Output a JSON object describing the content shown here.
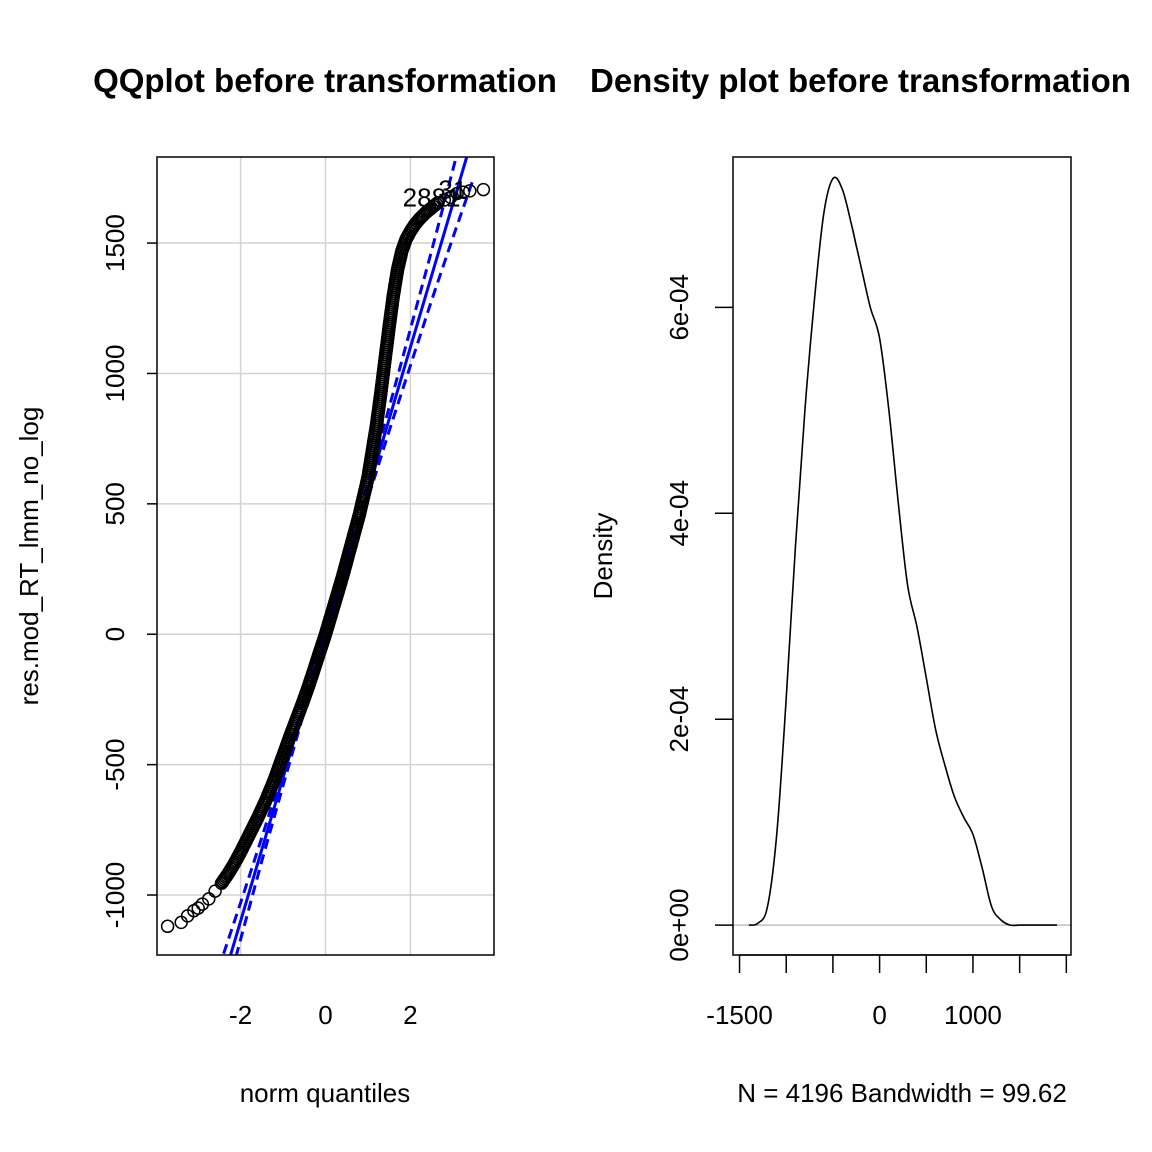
{
  "chart_data": [
    {
      "type": "scatter",
      "title": "QQplot before transformation",
      "xlabel": "norm quantiles",
      "ylabel": "res.mod_RT_lmm_no_log",
      "xlim": [
        -3.97,
        3.97
      ],
      "ylim": [
        -1230,
        1830
      ],
      "x_ticks": [
        -2,
        0,
        2
      ],
      "x_tick_labels": [
        "-2",
        "0",
        "2"
      ],
      "y_ticks": [
        -1000,
        -500,
        0,
        500,
        1000,
        1500
      ],
      "y_tick_labels": [
        "-1000",
        "-500",
        "0",
        "500",
        "1000",
        "1500"
      ],
      "grid": true,
      "points_color": "#000000",
      "reference_line_color": "#0000ff",
      "reference_line": {
        "intercept": 0,
        "slope": 550
      },
      "confidence_band": {
        "x": [
          -2.4,
          -2,
          -1.5,
          -1,
          -0.5,
          0,
          0.5,
          1,
          1.5,
          2,
          2.5,
          3,
          3.5
        ],
        "halfwidth": [
          95,
          70,
          45,
          30,
          20,
          15,
          20,
          30,
          45,
          70,
          95,
          130,
          170
        ]
      },
      "points": {
        "x": [
          -3.72,
          -3.4,
          -3.25,
          -3.1,
          -3.0,
          -2.9,
          -2.75,
          -2.6,
          -2.45,
          -2.3,
          -2.15,
          -2.0,
          -1.8,
          -1.6,
          -1.4,
          -1.2,
          -1.0,
          -0.8,
          -0.6,
          -0.4,
          -0.2,
          0.0,
          0.2,
          0.4,
          0.6,
          0.8,
          1.0,
          1.1,
          1.2,
          1.3,
          1.4,
          1.5,
          1.6,
          1.7,
          1.8,
          1.9,
          2.0,
          2.1,
          2.2,
          2.35,
          2.5,
          2.65,
          2.8,
          2.95,
          3.1,
          3.25,
          3.4,
          3.72
        ],
        "y": [
          -1120,
          -1105,
          -1080,
          -1060,
          -1050,
          -1035,
          -1015,
          -985,
          -955,
          -920,
          -880,
          -835,
          -770,
          -705,
          -635,
          -555,
          -465,
          -375,
          -290,
          -200,
          -100,
          0,
          110,
          220,
          340,
          460,
          600,
          700,
          800,
          920,
          1050,
          1180,
          1300,
          1400,
          1470,
          1515,
          1545,
          1570,
          1590,
          1615,
          1635,
          1655,
          1665,
          1675,
          1690,
          1695,
          1700,
          1705
        ]
      },
      "labels": [
        {
          "text": "2881",
          "x": 2.5,
          "y": 1675
        },
        {
          "text": "31",
          "x": 3.0,
          "y": 1705
        }
      ]
    },
    {
      "type": "line",
      "title": "Density plot before transformation",
      "ylabel": "Density",
      "xlabel": "N = 4196   Bandwidth = 99.62",
      "xlim": [
        -1570,
        2050
      ],
      "ylim": [
        -2.9e-05,
        0.000746
      ],
      "x_ticks": [
        -1500,
        -1000,
        -500,
        0,
        500,
        1000,
        1500,
        2000
      ],
      "x_tick_labels": [
        "-1500",
        "0",
        "1000"
      ],
      "x_labeled_ticks": [
        -1500,
        0,
        1000
      ],
      "y_ticks": [
        0,
        0.0002,
        0.0004,
        0.0006
      ],
      "y_tick_labels": [
        "0e+00",
        "2e-04",
        "4e-04",
        "6e-04"
      ],
      "baseline": 0,
      "baseline_color": "#c0c0c0",
      "line_color": "#000000",
      "x": [
        -1400,
        -1300,
        -1200,
        -1100,
        -1000,
        -900,
        -800,
        -700,
        -600,
        -500,
        -400,
        -300,
        -250,
        -200,
        -100,
        0,
        100,
        200,
        300,
        400,
        500,
        600,
        700,
        800,
        900,
        1000,
        1100,
        1200,
        1300,
        1400,
        1500,
        1600,
        1700,
        1800,
        1900
      ],
      "y": [
        0,
        2e-06,
        1.8e-05,
        9e-05,
        0.00022,
        0.00037,
        0.0005,
        0.000605,
        0.00069,
        0.000725,
        0.000715,
        0.00068,
        0.00066,
        0.00064,
        0.0006,
        0.00057,
        0.0005,
        0.00041,
        0.00033,
        0.00029,
        0.00024,
        0.00019,
        0.000155,
        0.000125,
        0.000105,
        8.8e-05,
        5.5e-05,
        1.8e-05,
        5e-06,
        0,
        0,
        0,
        0,
        0,
        0
      ]
    }
  ]
}
